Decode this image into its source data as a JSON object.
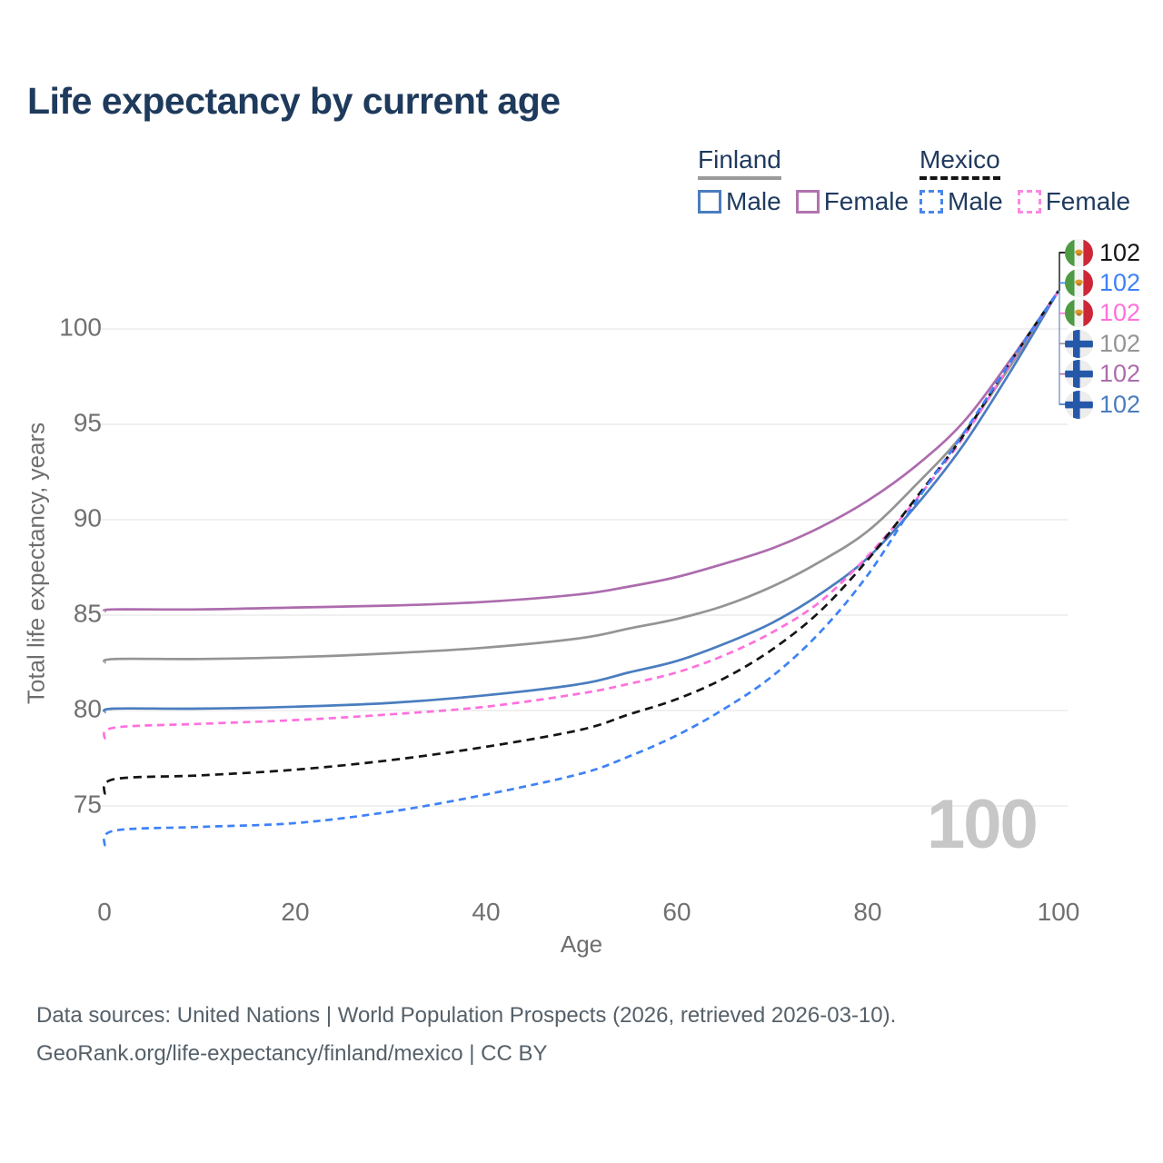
{
  "title": "Life expectancy by current age",
  "legend": {
    "finland": {
      "label": "Finland",
      "male": "Male",
      "female": "Female"
    },
    "mexico": {
      "label": "Mexico",
      "male": "Male",
      "female": "Female"
    }
  },
  "watermark": "100",
  "footer": {
    "line1": "Data sources: United Nations | World Population Prospects (2026, retrieved 2026-03-10).",
    "line2": "GeoRank.org/life-expectancy/finland/mexico | CC BY"
  },
  "end_labels": [
    {
      "flag": "mexico",
      "series": "Mexico",
      "value": "102",
      "color": "#141414"
    },
    {
      "flag": "mexico",
      "series": "Mexico Male",
      "value": "102",
      "color": "#3e82f7"
    },
    {
      "flag": "mexico",
      "series": "Mexico Female",
      "value": "102",
      "color": "#ff70dd"
    },
    {
      "flag": "finland",
      "series": "Finland",
      "value": "102",
      "color": "#949494"
    },
    {
      "flag": "finland",
      "series": "Finland Female",
      "value": "102",
      "color": "#ad6cad"
    },
    {
      "flag": "finland",
      "series": "Finland Male",
      "value": "102",
      "color": "#4a7dbf"
    }
  ],
  "chart_data": {
    "type": "line",
    "title": "Life expectancy by current age",
    "xlabel": "Age",
    "ylabel": "Total life expectancy, years",
    "xlim": [
      0,
      100
    ],
    "ylim": [
      72,
      103
    ],
    "xticks": [
      0,
      20,
      40,
      60,
      80,
      100
    ],
    "yticks": [
      75,
      80,
      85,
      90,
      95,
      100
    ],
    "grid": "horizontal",
    "legend_position": "top-right",
    "x": [
      0,
      1,
      10,
      20,
      30,
      40,
      50,
      55,
      60,
      65,
      70,
      75,
      80,
      85,
      90,
      95,
      100
    ],
    "series": [
      {
        "name": "Finland Female",
        "country": "Finland",
        "sex": "female",
        "style": "solid",
        "color": "#ad6cad",
        "values": [
          85.2,
          85.3,
          85.3,
          85.4,
          85.5,
          85.7,
          86.1,
          86.5,
          87.0,
          87.7,
          88.5,
          89.6,
          91.0,
          92.8,
          95.1,
          98.4,
          102
        ]
      },
      {
        "name": "Finland",
        "country": "Finland",
        "sex": "all",
        "style": "solid",
        "color": "#949494",
        "values": [
          82.5,
          82.7,
          82.7,
          82.8,
          83.0,
          83.3,
          83.8,
          84.3,
          84.8,
          85.5,
          86.5,
          87.8,
          89.4,
          91.8,
          94.5,
          98.1,
          102
        ]
      },
      {
        "name": "Finland Male",
        "country": "Finland",
        "sex": "male",
        "style": "solid",
        "color": "#4a7dbf",
        "values": [
          79.9,
          80.1,
          80.1,
          80.2,
          80.4,
          80.8,
          81.4,
          82.0,
          82.6,
          83.5,
          84.6,
          86.1,
          88.0,
          90.7,
          93.9,
          97.8,
          102
        ]
      },
      {
        "name": "Mexico Female",
        "country": "Mexico",
        "sex": "female",
        "style": "dashed",
        "color": "#ff70dd",
        "values": [
          78.5,
          79.1,
          79.3,
          79.5,
          79.8,
          80.2,
          80.9,
          81.4,
          82.0,
          82.9,
          84.1,
          85.7,
          88.1,
          91.0,
          94.3,
          98.2,
          102
        ]
      },
      {
        "name": "Mexico",
        "country": "Mexico",
        "sex": "all",
        "style": "dashed",
        "color": "#141414",
        "values": [
          75.6,
          76.4,
          76.6,
          76.9,
          77.4,
          78.1,
          79.0,
          79.8,
          80.6,
          81.7,
          83.2,
          85.2,
          87.9,
          91.1,
          94.4,
          98.3,
          102
        ]
      },
      {
        "name": "Mexico Male",
        "country": "Mexico",
        "sex": "male",
        "style": "dashed",
        "color": "#3e82f7",
        "values": [
          72.9,
          73.7,
          73.9,
          74.1,
          74.7,
          75.6,
          76.7,
          77.6,
          78.7,
          80.1,
          81.8,
          84.1,
          87.1,
          90.9,
          94.5,
          98.3,
          102
        ]
      }
    ],
    "end_value": 102
  }
}
